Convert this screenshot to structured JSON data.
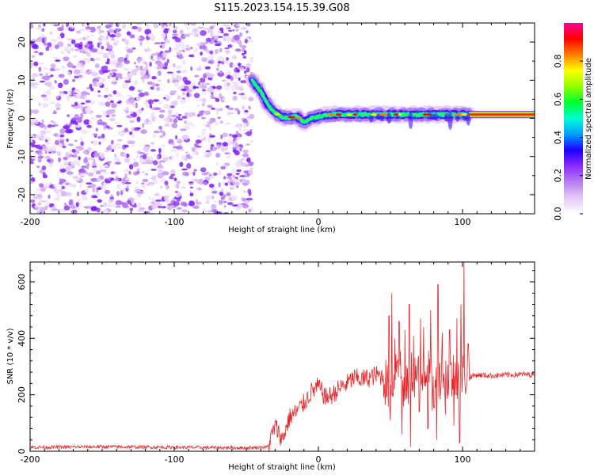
{
  "title": "S115.2023.154.15.39.G08",
  "colors": {
    "snr_line": "#e8262a",
    "noise_purple": "#7a00ff",
    "axis": "#000000",
    "colorbar_stops": [
      "#ffffff",
      "#e3c9f7",
      "#b77ef0",
      "#8a2bff",
      "#2000ff",
      "#00a0ff",
      "#00ffd0",
      "#00ff30",
      "#90ff00",
      "#ffff00",
      "#ff8000",
      "#ff0000",
      "#ff0090"
    ]
  },
  "chart_data": [
    {
      "type": "heatmap",
      "xlabel": "Height of straight line (km)",
      "ylabel": "Frequency (Hz)",
      "xlim": [
        -200,
        150
      ],
      "ylim": [
        -25,
        25
      ],
      "x_ticks": [
        -200,
        -100,
        0,
        100
      ],
      "y_ticks": [
        -20,
        -10,
        0,
        10,
        20
      ],
      "noise_region_x": [
        -200,
        -46
      ],
      "signal_start_x": -46,
      "clean_tone_start_x": 105,
      "centerline_hz": [
        [
          -46,
          10
        ],
        [
          -40,
          7
        ],
        [
          -35,
          3.5
        ],
        [
          -30,
          1.5
        ],
        [
          -25,
          0.3
        ],
        [
          -20,
          0.2
        ],
        [
          -15,
          0.5
        ],
        [
          -10,
          -1
        ],
        [
          -5,
          0
        ],
        [
          0,
          0.5
        ],
        [
          10,
          1
        ],
        [
          20,
          1
        ],
        [
          30,
          1
        ],
        [
          40,
          1
        ],
        [
          50,
          1
        ],
        [
          60,
          1
        ],
        [
          70,
          1
        ],
        [
          80,
          1
        ],
        [
          90,
          1
        ],
        [
          100,
          1
        ],
        [
          105,
          1
        ],
        [
          150,
          1
        ]
      ],
      "colorbar": {
        "label": "Normalized spectral amplitude",
        "range": [
          0,
          1
        ],
        "ticks": [
          0.0,
          0.2,
          0.4,
          0.6,
          0.8
        ]
      }
    },
    {
      "type": "line",
      "xlabel": "Height of straight line (km)",
      "ylabel": "SNR (10 * v/v)",
      "xlim": [
        -200,
        150
      ],
      "ylim": [
        0,
        670
      ],
      "x_ticks": [
        -200,
        -100,
        0,
        100
      ],
      "y_ticks": [
        0,
        200,
        400,
        600
      ],
      "series": [
        {
          "baseline": [
            [
              -200,
              14
            ],
            [
              -150,
              16
            ],
            [
              -100,
              14
            ],
            [
              -50,
              12
            ],
            [
              -35,
              15
            ]
          ],
          "rise": [
            [
              -35,
              15
            ],
            [
              -30,
              90
            ],
            [
              -25,
              40
            ],
            [
              -20,
              120
            ],
            [
              -15,
              140
            ],
            [
              -10,
              170
            ],
            [
              -5,
              210
            ],
            [
              0,
              230
            ],
            [
              5,
              190
            ],
            [
              10,
              200
            ],
            [
              15,
              225
            ],
            [
              20,
              240
            ],
            [
              25,
              260
            ],
            [
              30,
              255
            ],
            [
              35,
              260
            ],
            [
              40,
              270
            ],
            [
              45,
              265
            ]
          ],
          "volatile": [
            [
              45,
              270
            ],
            [
              50,
              200
            ],
            [
              55,
              350
            ],
            [
              60,
              200
            ],
            [
              65,
              280
            ],
            [
              70,
              260
            ],
            [
              75,
              300
            ],
            [
              80,
              200
            ],
            [
              85,
              280
            ],
            [
              90,
              260
            ],
            [
              95,
              270
            ],
            [
              100,
              280
            ],
            [
              105,
              270
            ]
          ],
          "spikes": [
            [
              49,
              480
            ],
            [
              51,
              560
            ],
            [
              53,
              400
            ],
            [
              56,
              460
            ],
            [
              60,
              430
            ],
            [
              63,
              520
            ],
            [
              66,
              410
            ],
            [
              71,
              470
            ],
            [
              73,
              440
            ],
            [
              78,
              500
            ],
            [
              83,
              590
            ],
            [
              86,
              420
            ],
            [
              91,
              430
            ],
            [
              96,
              470
            ],
            [
              99,
              520
            ],
            [
              101,
              670
            ],
            [
              104,
              380
            ]
          ],
          "dips": [
            [
              50,
              110
            ],
            [
              58,
              60
            ],
            [
              64,
              15
            ],
            [
              70,
              140
            ],
            [
              76,
              80
            ],
            [
              82,
              40
            ],
            [
              88,
              130
            ],
            [
              94,
              90
            ],
            [
              98,
              30
            ]
          ],
          "plateau": [
            [
              105,
              265
            ],
            [
              110,
              270
            ],
            [
              120,
              268
            ],
            [
              130,
              270
            ],
            [
              140,
              272
            ],
            [
              150,
              272
            ]
          ]
        }
      ]
    }
  ]
}
